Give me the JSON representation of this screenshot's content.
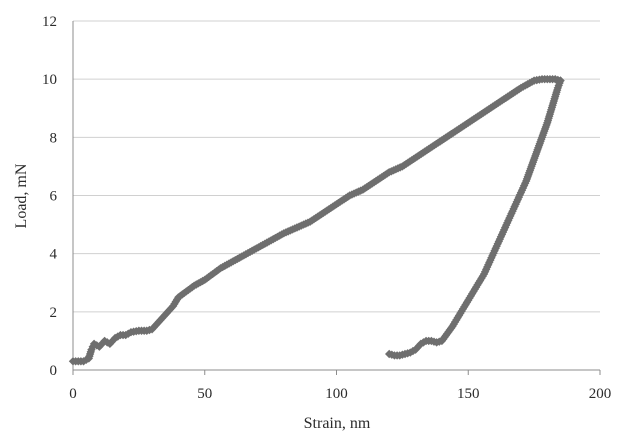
{
  "chart_data": {
    "type": "scatter",
    "title": "",
    "xlabel": "Strain, nm",
    "ylabel": "Load, mN",
    "xlim": [
      0,
      200
    ],
    "ylim": [
      0,
      12
    ],
    "xticks": [
      0,
      50,
      100,
      150,
      200
    ],
    "yticks": [
      0,
      2,
      4,
      6,
      8,
      10,
      12
    ],
    "grid": "horizontal",
    "legend": "none",
    "series_color": "#6e6e6e",
    "series": [
      {
        "segment": "loading",
        "x": [
          0,
          2,
          4,
          6,
          7,
          8,
          10,
          12,
          14,
          16,
          18,
          20,
          22,
          25,
          28,
          30,
          32,
          35,
          38,
          40,
          43,
          46,
          50,
          53,
          56,
          60,
          64,
          68,
          72,
          76,
          80,
          85,
          90,
          95,
          100,
          105,
          110,
          115,
          120,
          125,
          130,
          135,
          140,
          145,
          150,
          155,
          160,
          165,
          170,
          175,
          178,
          180,
          183,
          185
        ],
        "y": [
          0.3,
          0.3,
          0.3,
          0.4,
          0.7,
          0.9,
          0.8,
          1.0,
          0.9,
          1.1,
          1.2,
          1.2,
          1.3,
          1.35,
          1.35,
          1.4,
          1.6,
          1.9,
          2.2,
          2.5,
          2.7,
          2.9,
          3.1,
          3.3,
          3.5,
          3.7,
          3.9,
          4.1,
          4.3,
          4.5,
          4.7,
          4.9,
          5.1,
          5.4,
          5.7,
          6.0,
          6.2,
          6.5,
          6.8,
          7.0,
          7.3,
          7.6,
          7.9,
          8.2,
          8.5,
          8.8,
          9.1,
          9.4,
          9.7,
          9.95,
          10.0,
          10.0,
          10.0,
          9.95
        ]
      },
      {
        "segment": "unloading",
        "x": [
          185,
          184,
          183,
          182,
          181,
          180,
          178,
          176,
          174,
          172,
          170,
          168,
          166,
          164,
          162,
          160,
          158,
          156,
          154,
          152,
          150,
          148,
          146,
          144,
          142,
          140,
          138,
          136,
          134,
          132,
          130,
          128,
          126,
          124,
          122,
          120
        ],
        "y": [
          9.95,
          9.7,
          9.4,
          9.1,
          8.8,
          8.5,
          8.0,
          7.5,
          7.0,
          6.5,
          6.1,
          5.7,
          5.3,
          4.9,
          4.5,
          4.1,
          3.7,
          3.3,
          3.0,
          2.7,
          2.4,
          2.1,
          1.8,
          1.5,
          1.25,
          1.0,
          0.95,
          1.0,
          1.0,
          0.9,
          0.7,
          0.6,
          0.55,
          0.5,
          0.5,
          0.55
        ]
      }
    ]
  }
}
